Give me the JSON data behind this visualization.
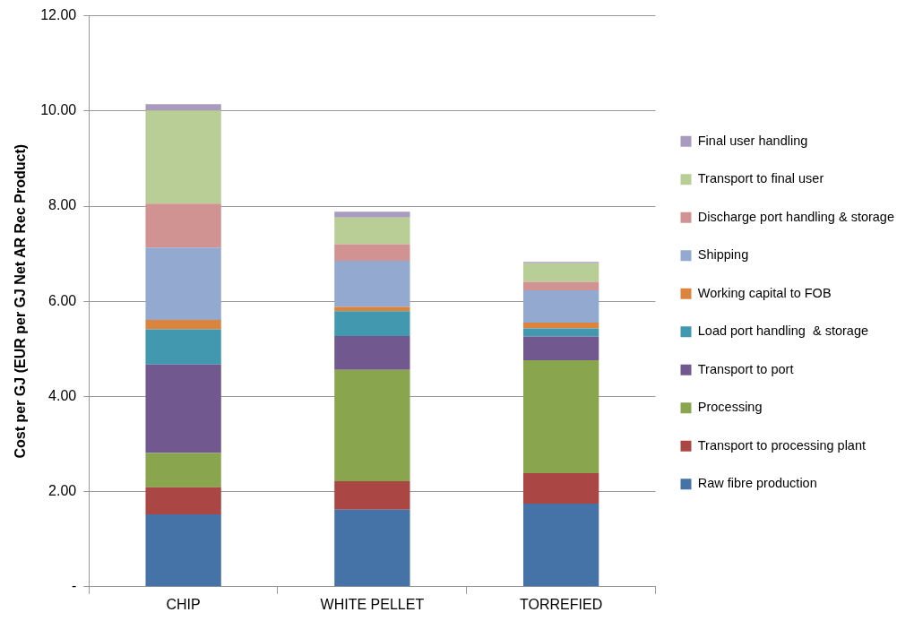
{
  "chart_data": {
    "type": "bar",
    "stacked": true,
    "ylabel": "Cost per GJ (EUR per GJ Net AR Rec Product)",
    "categories": [
      "CHIP",
      "WHITE PELLET",
      "TORREFIED"
    ],
    "ylim": [
      0,
      12
    ],
    "yticks": [
      {
        "value": 0,
        "label": "-"
      },
      {
        "value": 2,
        "label": "2.00"
      },
      {
        "value": 4,
        "label": "4.00"
      },
      {
        "value": 6,
        "label": "6.00"
      },
      {
        "value": 8,
        "label": "8.00"
      },
      {
        "value": 10,
        "label": "10.00"
      },
      {
        "value": 12,
        "label": "12.00"
      }
    ],
    "grid": "y",
    "legend": "right",
    "series": [
      {
        "name": "Raw fibre production",
        "color": "#4572a7",
        "values": [
          1.52,
          1.62,
          1.75
        ]
      },
      {
        "name": "Transport to processing plant",
        "color": "#aa4643",
        "values": [
          0.57,
          0.6,
          0.64
        ]
      },
      {
        "name": "Processing",
        "color": "#89a54e",
        "values": [
          0.72,
          2.34,
          2.37
        ]
      },
      {
        "name": "Transport to port",
        "color": "#71588f",
        "values": [
          1.86,
          0.71,
          0.5
        ]
      },
      {
        "name": "Load port handling  & storage",
        "color": "#4198af",
        "values": [
          0.74,
          0.52,
          0.17
        ]
      },
      {
        "name": "Working capital to FOB",
        "color": "#db843d",
        "values": [
          0.2,
          0.09,
          0.12
        ]
      },
      {
        "name": "Shipping",
        "color": "#93a9cf",
        "values": [
          1.52,
          0.97,
          0.68
        ]
      },
      {
        "name": "Discharge port handling & storage",
        "color": "#d19392",
        "values": [
          0.92,
          0.35,
          0.18
        ]
      },
      {
        "name": "Transport to final user",
        "color": "#b9cd96",
        "values": [
          1.96,
          0.56,
          0.39
        ]
      },
      {
        "name": "Final user handling",
        "color": "#a99bbd",
        "values": [
          0.13,
          0.12,
          0.03
        ]
      }
    ]
  }
}
